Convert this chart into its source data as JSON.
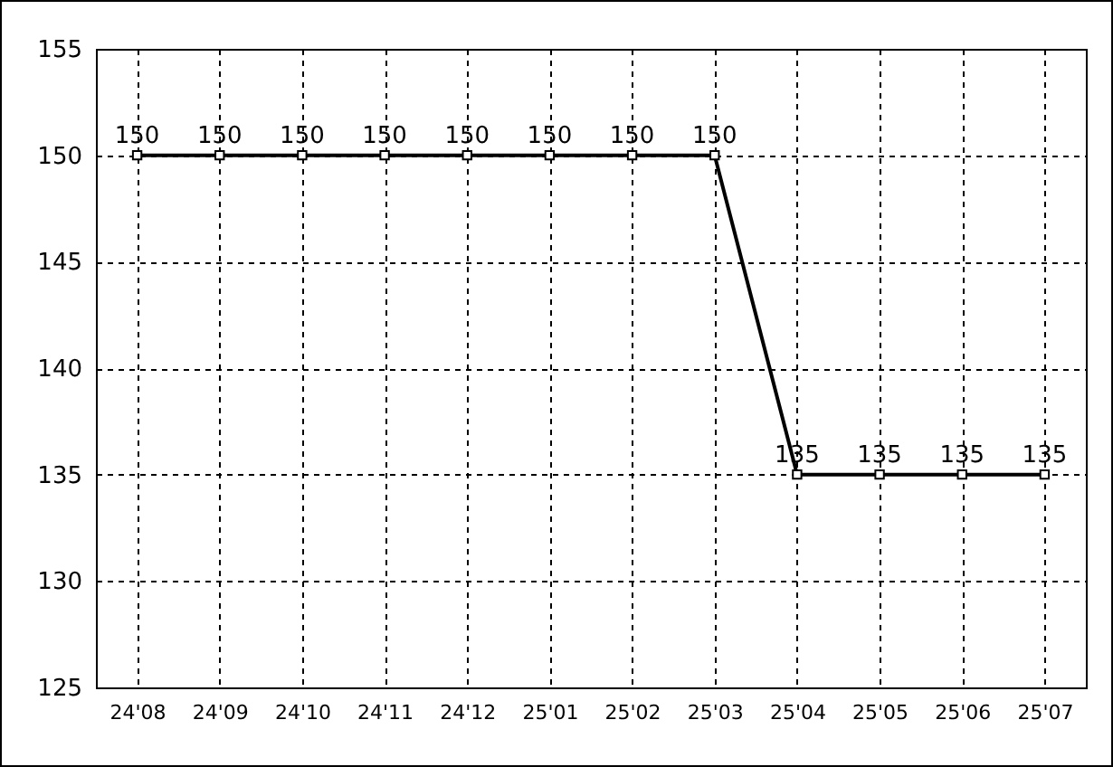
{
  "chart_data": {
    "type": "line",
    "categories": [
      "24'08",
      "24'09",
      "24'10",
      "24'11",
      "24'12",
      "25'01",
      "25'02",
      "25'03",
      "25'04",
      "25'05",
      "25'06",
      "25'07"
    ],
    "series": [
      {
        "color": "#000000",
        "values": [
          150,
          150,
          150,
          150,
          150,
          150,
          150,
          150,
          135,
          135,
          135,
          135
        ]
      }
    ],
    "ylim": [
      125,
      155
    ],
    "yticks": [
      125,
      130,
      135,
      140,
      145,
      150,
      155
    ],
    "grid": true,
    "marker": "square",
    "line_style": "solid",
    "data_labels": true
  }
}
